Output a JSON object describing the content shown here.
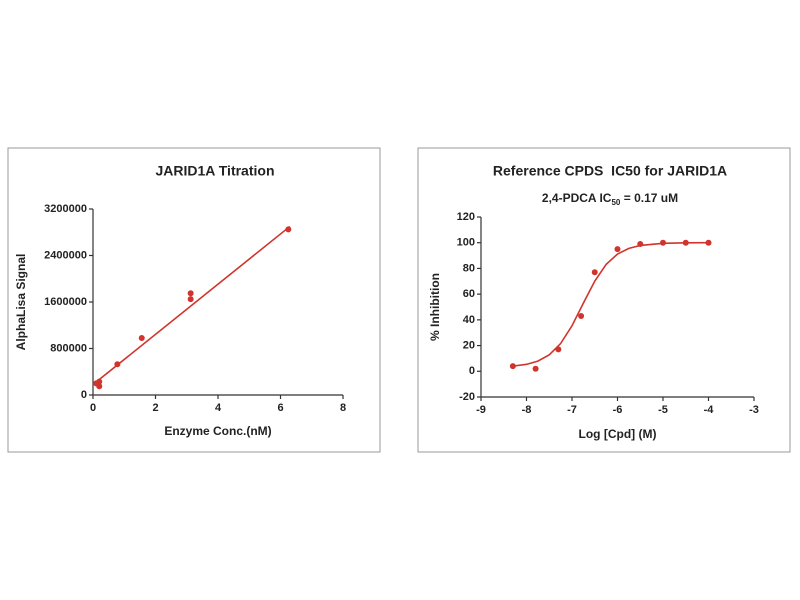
{
  "chart_data": [
    {
      "type": "scatter",
      "title": "JARID1A Titration",
      "x_label": "Enzyme Conc.(nM)",
      "y_label": "AlphaLisa Signal",
      "xlim": [
        0,
        8
      ],
      "xticks": [
        0,
        2,
        4,
        6,
        8
      ],
      "ylim": [
        0,
        3200000
      ],
      "yticks": [
        0,
        800000,
        1600000,
        2400000,
        3200000
      ],
      "series": [
        {
          "type": "scatter",
          "color": "#d0342c",
          "x": [
            0.1,
            0.2,
            0.2,
            0.78,
            1.56,
            3.125,
            3.125,
            6.25
          ],
          "values": [
            200000,
            150000,
            230000,
            530000,
            980000,
            1650000,
            1750000,
            2850000
          ]
        },
        {
          "type": "line",
          "color": "#d0342c",
          "x": [
            0,
            6.3
          ],
          "values": [
            180000,
            2900000
          ]
        }
      ]
    },
    {
      "type": "scatter",
      "title": "Reference CPDS  IC50 for JARID1A",
      "subtitle": [
        "2,4-PDCA IC",
        "50",
        " = 0.17 uM"
      ],
      "x_label": "Log [Cpd] (M)",
      "y_label": "% Inhibition",
      "xlim": [
        -9,
        -3
      ],
      "xticks": [
        -9,
        -8,
        -7,
        -6,
        -5,
        -4,
        -3
      ],
      "ylim": [
        -20,
        120
      ],
      "yticks": [
        -20,
        0,
        20,
        40,
        60,
        80,
        100,
        120
      ],
      "series": [
        {
          "type": "scatter",
          "color": "#d0342c",
          "x": [
            -8.3,
            -7.8,
            -7.3,
            -6.8,
            -6.5,
            -6,
            -5.5,
            -5,
            -4.5,
            -4
          ],
          "values": [
            4,
            2,
            17,
            43,
            77,
            95,
            99,
            100,
            100,
            100
          ]
        },
        {
          "type": "line",
          "color": "#d0342c",
          "x": [
            -8.3,
            -8,
            -7.75,
            -7.5,
            -7.25,
            -7,
            -6.75,
            -6.5,
            -6.25,
            -6,
            -5.75,
            -5.5,
            -5,
            -4.5,
            -4
          ],
          "values": [
            4,
            5.4,
            7.9,
            12.8,
            21.6,
            35.4,
            53,
            70.1,
            83.1,
            91.2,
            95.6,
            97.9,
            99.5,
            99.9,
            100
          ]
        }
      ]
    }
  ]
}
